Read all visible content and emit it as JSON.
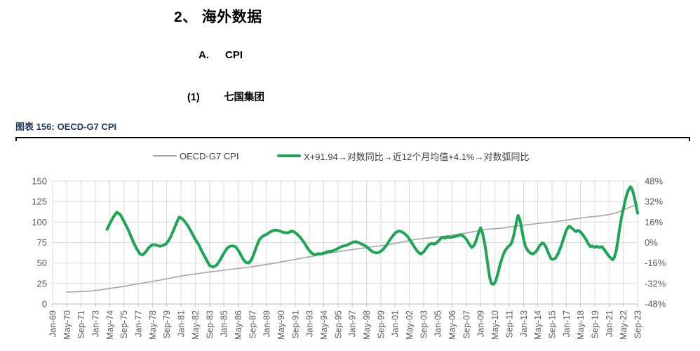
{
  "page": {
    "section_number": "2、",
    "section_title": "海外数据",
    "sub_letter": "A.",
    "sub_title": "CPI",
    "item_number": "(1)",
    "item_title": "七国集团",
    "figure_label": "图表 156:",
    "figure_title": "OECD-G7 CPI"
  },
  "colors": {
    "heading": "#000000",
    "caption_navy": "#1f3864",
    "grid": "#d9d9d9",
    "axis_line": "#bfbfbf",
    "axis_text": "#595959",
    "series_gray": "#a6a6a6",
    "series_green": "#1ba654"
  },
  "chart_data": {
    "type": "line",
    "title": "OECD-G7 CPI",
    "grid": true,
    "legend_position": "top",
    "legend": [
      {
        "label": "OECD-G7 CPI",
        "color": "#a6a6a6"
      },
      {
        "label": "X+91.94→对数同比→近12个月均值+4.1%→对数弧同比",
        "color": "#1ba654"
      }
    ],
    "left_axis": {
      "range": [
        0,
        150
      ],
      "ticks": [
        0,
        25,
        50,
        75,
        100,
        125,
        150
      ]
    },
    "right_axis": {
      "ticks_top_to_bottom": [
        "48%",
        "32%",
        "16%",
        "0%",
        "-16%",
        "-32%",
        "-48%"
      ]
    },
    "x_months_range": [
      0,
      656
    ],
    "x_tick_step_months": 16,
    "x_tick_labels": [
      "Jan-69",
      "May-70",
      "Sep-71",
      "Jan-73",
      "May-74",
      "Sep-75",
      "Jan-77",
      "May-78",
      "Sep-79",
      "Jan-81",
      "May-82",
      "Sep-83",
      "Jan-85",
      "May-86",
      "Sep-87",
      "Jan-89",
      "May-90",
      "Sep-91",
      "Jan-93",
      "May-94",
      "Sep-95",
      "Jan-97",
      "May-98",
      "Sep-99",
      "Jan-01",
      "May-02",
      "Sep-03",
      "Jan-05",
      "May-06",
      "Sep-07",
      "Jan-09",
      "May-10",
      "Sep-11",
      "Jan-13",
      "May-14",
      "Sep-15",
      "Jan-17",
      "May-18",
      "Sep-19",
      "Jan-21",
      "May-22",
      "Sep-23"
    ],
    "series": [
      {
        "name": "OECD-G7 CPI",
        "axis": "left",
        "color": "#a6a6a6",
        "width": 1.6,
        "points": [
          [
            16,
            14.5
          ],
          [
            28,
            15
          ],
          [
            40,
            15.5
          ],
          [
            52,
            17
          ],
          [
            67,
            19.5
          ],
          [
            80,
            21.5
          ],
          [
            93,
            24
          ],
          [
            106,
            26.5
          ],
          [
            120,
            29
          ],
          [
            133,
            31.8
          ],
          [
            146,
            34.5
          ],
          [
            159,
            36.5
          ],
          [
            172,
            38.5
          ],
          [
            185,
            40.3
          ],
          [
            198,
            42
          ],
          [
            211,
            43.7
          ],
          [
            224,
            45.5
          ],
          [
            237,
            47.7
          ],
          [
            250,
            50
          ],
          [
            264,
            52.8
          ],
          [
            277,
            55.5
          ],
          [
            290,
            58
          ],
          [
            303,
            60.5
          ],
          [
            316,
            63
          ],
          [
            330,
            65.5
          ],
          [
            343,
            67.5
          ],
          [
            356,
            69.5
          ],
          [
            369,
            71.2
          ],
          [
            382,
            73.5
          ],
          [
            395,
            76.5
          ],
          [
            408,
            79
          ],
          [
            421,
            80.5
          ],
          [
            434,
            82
          ],
          [
            447,
            84
          ],
          [
            460,
            86
          ],
          [
            473,
            88.5
          ],
          [
            486,
            91
          ],
          [
            494,
            91.8
          ],
          [
            502,
            92.3
          ],
          [
            512,
            94
          ],
          [
            525,
            95.8
          ],
          [
            538,
            97.5
          ],
          [
            551,
            99
          ],
          [
            564,
            100.5
          ],
          [
            577,
            102.5
          ],
          [
            590,
            104.5
          ],
          [
            600,
            106
          ],
          [
            608,
            106.8
          ],
          [
            616,
            107.8
          ],
          [
            624,
            109.2
          ],
          [
            630,
            110.8
          ],
          [
            636,
            112.8
          ],
          [
            642,
            115.5
          ],
          [
            648,
            118.5
          ],
          [
            652,
            120
          ],
          [
            656,
            121.2
          ]
        ]
      },
      {
        "name": "X+91.94→对数同比→近12个月均值+4.1%→对数弧同比",
        "axis": "right",
        "color": "#1ba654",
        "width": 4,
        "points": [
          [
            61,
            91
          ],
          [
            64,
            98
          ],
          [
            68,
            106
          ],
          [
            72,
            112
          ],
          [
            76,
            109
          ],
          [
            80,
            101
          ],
          [
            85,
            90
          ],
          [
            90,
            77
          ],
          [
            94,
            68
          ],
          [
            98,
            61
          ],
          [
            101,
            60
          ],
          [
            104,
            63
          ],
          [
            108,
            69
          ],
          [
            112,
            72.5
          ],
          [
            116,
            72
          ],
          [
            120,
            70.5
          ],
          [
            124,
            71.5
          ],
          [
            128,
            74
          ],
          [
            132,
            81
          ],
          [
            136,
            91
          ],
          [
            139,
            99
          ],
          [
            142,
            106
          ],
          [
            145,
            104.5
          ],
          [
            148,
            101
          ],
          [
            152,
            95
          ],
          [
            156,
            87
          ],
          [
            160,
            79
          ],
          [
            164,
            72
          ],
          [
            168,
            63
          ],
          [
            172,
            55
          ],
          [
            176,
            47
          ],
          [
            180,
            45
          ],
          [
            184,
            47.5
          ],
          [
            188,
            54
          ],
          [
            192,
            62
          ],
          [
            196,
            68.5
          ],
          [
            199,
            70.5
          ],
          [
            202,
            71
          ],
          [
            205,
            70
          ],
          [
            208,
            66
          ],
          [
            211,
            60
          ],
          [
            214,
            54
          ],
          [
            217,
            50.5
          ],
          [
            220,
            50
          ],
          [
            223,
            54
          ],
          [
            226,
            62
          ],
          [
            229,
            71
          ],
          [
            232,
            79
          ],
          [
            236,
            83
          ],
          [
            240,
            85
          ],
          [
            244,
            88
          ],
          [
            248,
            90
          ],
          [
            252,
            90
          ],
          [
            256,
            88.5
          ],
          [
            260,
            87
          ],
          [
            264,
            87
          ],
          [
            268,
            89
          ],
          [
            271,
            88
          ],
          [
            274,
            85.5
          ],
          [
            278,
            81
          ],
          [
            282,
            75
          ],
          [
            286,
            68
          ],
          [
            290,
            62.5
          ],
          [
            294,
            60
          ],
          [
            298,
            61.5
          ],
          [
            301,
            61
          ],
          [
            305,
            62.5
          ],
          [
            309,
            64
          ],
          [
            313,
            64.5
          ],
          [
            317,
            66
          ],
          [
            321,
            68.5
          ],
          [
            325,
            70.5
          ],
          [
            329,
            71.5
          ],
          [
            333,
            73.5
          ],
          [
            337,
            75.5
          ],
          [
            340,
            76
          ],
          [
            344,
            74.5
          ],
          [
            348,
            72.5
          ],
          [
            352,
            70
          ],
          [
            355,
            67
          ],
          [
            358,
            64.5
          ],
          [
            361,
            62.8
          ],
          [
            364,
            62.3
          ],
          [
            367,
            63.5
          ],
          [
            370,
            66
          ],
          [
            374,
            71
          ],
          [
            378,
            78
          ],
          [
            382,
            84
          ],
          [
            385,
            87.5
          ],
          [
            388,
            89
          ],
          [
            391,
            88.5
          ],
          [
            394,
            86.5
          ],
          [
            398,
            82.5
          ],
          [
            402,
            76
          ],
          [
            406,
            69
          ],
          [
            410,
            63
          ],
          [
            413,
            61
          ],
          [
            416,
            63.5
          ],
          [
            419,
            68
          ],
          [
            422,
            72.5
          ],
          [
            425,
            74
          ],
          [
            428,
            73
          ],
          [
            431,
            75
          ],
          [
            434,
            78.5
          ],
          [
            437,
            81.5
          ],
          [
            440,
            80.5
          ],
          [
            443,
            82
          ],
          [
            446,
            81
          ],
          [
            449,
            82
          ],
          [
            452,
            82.5
          ],
          [
            455,
            83.5
          ],
          [
            458,
            84.5
          ],
          [
            461,
            82.5
          ],
          [
            464,
            79
          ],
          [
            467,
            73.5
          ],
          [
            470,
            69
          ],
          [
            473,
            72
          ],
          [
            476,
            81
          ],
          [
            478,
            88
          ],
          [
            480,
            93
          ],
          [
            482,
            87
          ],
          [
            484,
            77
          ],
          [
            486,
            64
          ],
          [
            488,
            48
          ],
          [
            490,
            33
          ],
          [
            492,
            25
          ],
          [
            494,
            24
          ],
          [
            496,
            26
          ],
          [
            498,
            32
          ],
          [
            500,
            40
          ],
          [
            502,
            49
          ],
          [
            504,
            56
          ],
          [
            506,
            62
          ],
          [
            508,
            66
          ],
          [
            510,
            69
          ],
          [
            512,
            71
          ],
          [
            514,
            73
          ],
          [
            516,
            79
          ],
          [
            518,
            88
          ],
          [
            520,
            99
          ],
          [
            522,
            108
          ],
          [
            524,
            103
          ],
          [
            526,
            92
          ],
          [
            528,
            80
          ],
          [
            530,
            71
          ],
          [
            533,
            65
          ],
          [
            536,
            62
          ],
          [
            539,
            61
          ],
          [
            543,
            65
          ],
          [
            546,
            71
          ],
          [
            549,
            74.5
          ],
          [
            551,
            73.5
          ],
          [
            553,
            70
          ],
          [
            556,
            62
          ],
          [
            559,
            55
          ],
          [
            561,
            54.5
          ],
          [
            564,
            56
          ],
          [
            567,
            62
          ],
          [
            570,
            70
          ],
          [
            573,
            80
          ],
          [
            576,
            90
          ],
          [
            579,
            95
          ],
          [
            581,
            94
          ],
          [
            583,
            92
          ],
          [
            585,
            90
          ],
          [
            587,
            88.5
          ],
          [
            589,
            90
          ],
          [
            592,
            88
          ],
          [
            595,
            84
          ],
          [
            598,
            79
          ],
          [
            601,
            73
          ],
          [
            603,
            70
          ],
          [
            605,
            71
          ],
          [
            608,
            69
          ],
          [
            610,
            70.5
          ],
          [
            613,
            69
          ],
          [
            616,
            70
          ],
          [
            619,
            66
          ],
          [
            622,
            61
          ],
          [
            625,
            57
          ],
          [
            628,
            54
          ],
          [
            630,
            57
          ],
          [
            632,
            65
          ],
          [
            634,
            78
          ],
          [
            636,
            93
          ],
          [
            638,
            106
          ],
          [
            640,
            116
          ],
          [
            642,
            126
          ],
          [
            644,
            134
          ],
          [
            646,
            140
          ],
          [
            648,
            143
          ],
          [
            650,
            140
          ],
          [
            652,
            132
          ],
          [
            654,
            122
          ],
          [
            656,
            111
          ]
        ]
      }
    ]
  }
}
